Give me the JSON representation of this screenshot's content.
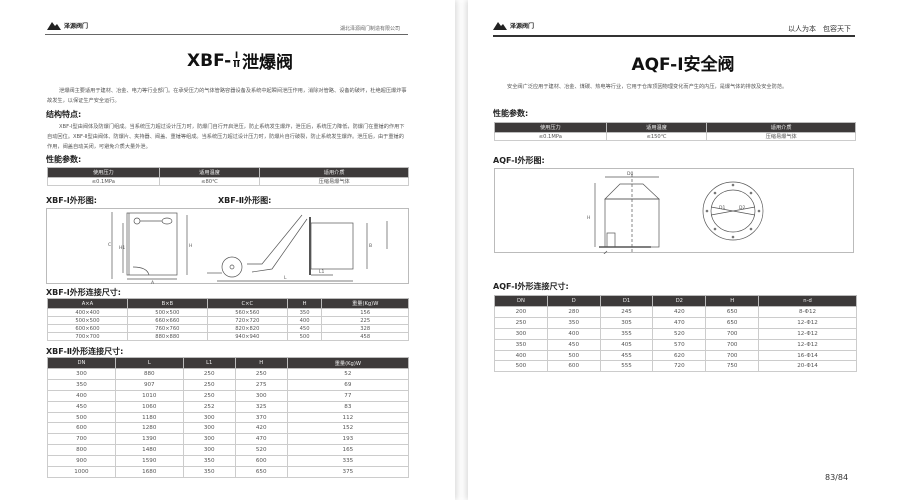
{
  "left_page": {
    "logo_text": "泽源阀门",
    "company": "湖北泽源阀门制造有限公司",
    "title_prefix": "XBF-",
    "title_roman_top": "I",
    "title_roman_bottom": "II",
    "title_suffix": "泄爆阀",
    "intro": "泄爆阀主要适用于建材、冶金、电力等行业部门。在承受压力的气体管路容器设备及系统中起瞬间泄压作用，消除对管路、设备的破坏，杜绝超压爆炸事故发生，以保证生产安全运行。",
    "structure_heading": "结构特点:",
    "structure_text": "XBF-Ⅰ型由阀体及防爆门组成。当系统压力超过设计压力时，防爆门自行开启泄压，防止系统发生爆炸，泄压后，系统压力降低，防爆门在重锤的作用下自动回位。XBF-Ⅱ型由阀体、防爆片、夹持器、阀盖、重锤等组成。当系统压力超过设计压力时，防爆片自行破裂，防止系统发生爆炸。泄压后，由于重锤的作用，阀盖自动关闭，可避免介质大量外泄。",
    "performance_heading": "性能参数:",
    "performance": {
      "headers": [
        "使用压力",
        "适用温度",
        "适用介质"
      ],
      "row": [
        "≤0.1MPa",
        "≤80℃",
        "压缩易爆气体"
      ]
    },
    "fig1_heading": "XBF-Ⅰ外形图:",
    "fig2_heading": "XBF-Ⅱ外形图:",
    "fig_labels": {
      "h": "H",
      "h1": "H1",
      "c": "C",
      "a": "A",
      "l": "L",
      "l1": "L1",
      "b": "B"
    },
    "table1_heading": "XBF-Ⅰ外形连接尺寸:",
    "table1": {
      "headers": [
        "A×A",
        "B×B",
        "C×C",
        "H",
        "重量(Kg)W"
      ],
      "rows": [
        [
          "400×400",
          "500×500",
          "560×560",
          "350",
          "156"
        ],
        [
          "500×500",
          "660×660",
          "720×720",
          "400",
          "225"
        ],
        [
          "600×600",
          "760×760",
          "820×820",
          "450",
          "328"
        ],
        [
          "700×700",
          "880×880",
          "940×940",
          "500",
          "458"
        ]
      ]
    },
    "table2_heading": "XBF-Ⅱ外形连接尺寸:",
    "table2": {
      "headers": [
        "DN",
        "L",
        "L1",
        "H",
        "重量(Kg)W"
      ],
      "rows": [
        [
          "300",
          "880",
          "250",
          "250",
          "52"
        ],
        [
          "350",
          "907",
          "250",
          "275",
          "69"
        ],
        [
          "400",
          "1010",
          "250",
          "300",
          "77"
        ],
        [
          "450",
          "1060",
          "252",
          "325",
          "83"
        ],
        [
          "500",
          "1180",
          "300",
          "370",
          "112"
        ],
        [
          "600",
          "1280",
          "300",
          "420",
          "152"
        ],
        [
          "700",
          "1390",
          "300",
          "470",
          "193"
        ],
        [
          "800",
          "1480",
          "300",
          "520",
          "165"
        ],
        [
          "900",
          "1590",
          "350",
          "600",
          "335"
        ],
        [
          "1000",
          "1680",
          "350",
          "650",
          "375"
        ]
      ]
    }
  },
  "right_page": {
    "logo_text": "泽源阀门",
    "slogan": "以人为本　包容天下",
    "title": "AQF-Ⅰ安全阀",
    "intro": "安全阀广泛应用于建材、冶金、煤碳、热电等行业，它用于仓库顶因物理变化而产生的内压，是爆气体的排放及安全防范。",
    "performance_heading": "性能参数:",
    "performance": {
      "headers": [
        "使用压力",
        "适用温度",
        "适用介质"
      ],
      "row": [
        "≤0.1MPa",
        "≤150℃",
        "压缩易爆气体"
      ]
    },
    "fig_heading": "AQF-Ⅰ外形图:",
    "fig_labels": {
      "d0": "D0",
      "h": "H",
      "nd": "n-d",
      "dn": "DN",
      "d1": "D1",
      "d2": "D2"
    },
    "table_heading": "AQF-Ⅰ外形连接尺寸:",
    "table": {
      "headers": [
        "DN",
        "D",
        "D1",
        "D2",
        "H",
        "n-d"
      ],
      "rows": [
        [
          "200",
          "280",
          "245",
          "420",
          "650",
          "8-Φ12"
        ],
        [
          "250",
          "350",
          "305",
          "470",
          "650",
          "12-Φ12"
        ],
        [
          "300",
          "400",
          "355",
          "520",
          "700",
          "12-Φ12"
        ],
        [
          "350",
          "450",
          "405",
          "570",
          "700",
          "12-Φ12"
        ],
        [
          "400",
          "500",
          "455",
          "620",
          "700",
          "16-Φ14"
        ],
        [
          "500",
          "600",
          "555",
          "720",
          "750",
          "20-Φ14"
        ]
      ]
    },
    "page_number": "83/84"
  }
}
